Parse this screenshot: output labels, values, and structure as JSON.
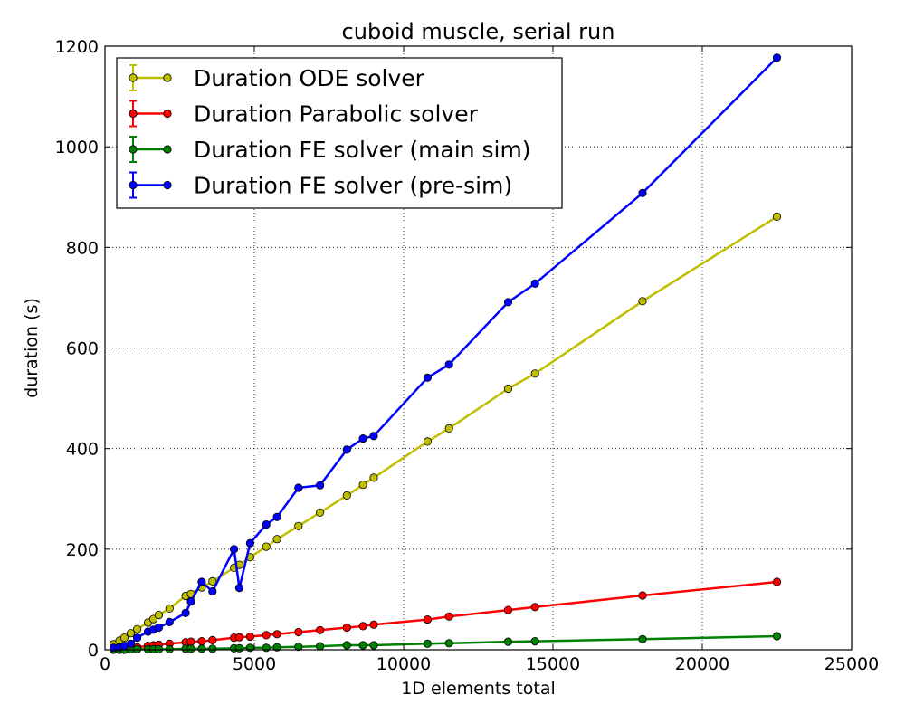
{
  "chart_data": {
    "type": "line",
    "title": "cuboid muscle, serial run",
    "xlabel": "1D elements total",
    "ylabel": "duration (s)",
    "xlim": [
      0,
      25000
    ],
    "ylim": [
      0,
      1200
    ],
    "xticks": [
      "0",
      "5000",
      "10000",
      "15000",
      "20000",
      "25000"
    ],
    "yticks": [
      "0",
      "200",
      "400",
      "600",
      "800",
      "1000",
      "1200"
    ],
    "grid": true,
    "legend_position": "top-left",
    "series": [
      {
        "name": "Duration ODE solver",
        "color": "#bfbf00",
        "x": [
          288,
          486,
          648,
          864,
          1080,
          1440,
          1620,
          1800,
          2160,
          2700,
          2880,
          3240,
          3600,
          4320,
          4500,
          4860,
          5400,
          5760,
          6480,
          7200,
          8100,
          8640,
          9000,
          10800,
          11520,
          13500,
          14400,
          18000,
          22500
        ],
        "y": [
          11,
          18,
          24,
          33,
          41,
          54,
          61,
          69,
          82,
          107,
          111,
          124,
          136,
          163,
          169,
          184,
          205,
          220,
          246,
          273,
          307,
          328,
          342,
          414,
          440,
          519,
          549,
          693,
          861
        ]
      },
      {
        "name": "Duration Parabolic solver",
        "color": "#ff0000",
        "x": [
          288,
          486,
          648,
          864,
          1080,
          1440,
          1620,
          1800,
          2160,
          2700,
          2880,
          3240,
          3600,
          4320,
          4500,
          4860,
          5400,
          5760,
          6480,
          7200,
          8100,
          8640,
          9000,
          10800,
          11520,
          13500,
          14400,
          18000,
          22500
        ],
        "y": [
          1,
          2,
          3,
          4,
          5,
          8,
          9,
          10,
          12,
          15,
          16,
          17,
          19,
          24,
          25,
          26,
          29,
          31,
          35,
          39,
          44,
          47,
          50,
          60,
          66,
          79,
          85,
          108,
          135
        ]
      },
      {
        "name": "Duration FE solver (main sim)",
        "color": "#008000",
        "x": [
          288,
          486,
          648,
          864,
          1080,
          1440,
          1620,
          1800,
          2160,
          2700,
          2880,
          3240,
          3600,
          4320,
          4500,
          4860,
          5400,
          5760,
          6480,
          7200,
          8100,
          8640,
          9000,
          10800,
          11520,
          13500,
          14400,
          18000,
          22500
        ],
        "y": [
          0,
          0,
          0,
          1,
          1,
          1,
          1,
          1,
          1,
          2,
          2,
          2,
          2,
          3,
          3,
          4,
          4,
          5,
          6,
          7,
          9,
          9,
          9,
          12,
          13,
          16,
          17,
          21,
          27
        ]
      },
      {
        "name": "Duration FE solver (pre-sim)",
        "color": "#0000ff",
        "x": [
          288,
          486,
          648,
          864,
          1080,
          1440,
          1620,
          1800,
          2160,
          2700,
          2880,
          3240,
          3600,
          4320,
          4500,
          4860,
          5400,
          5760,
          6480,
          7200,
          8100,
          8640,
          9000,
          10800,
          11520,
          13500,
          14400,
          18000,
          22500
        ],
        "y": [
          4,
          5,
          8,
          12,
          24,
          36,
          40,
          44,
          55,
          73,
          96,
          135,
          116,
          200,
          123,
          212,
          249,
          264,
          322,
          327,
          398,
          420,
          425,
          541,
          567,
          691,
          728,
          908,
          1177
        ]
      }
    ]
  }
}
